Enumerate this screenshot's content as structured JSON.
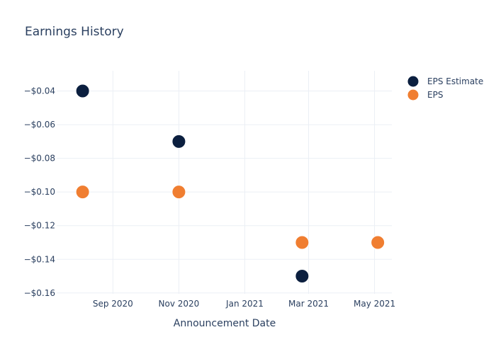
{
  "chart_data": {
    "type": "scatter",
    "title": "Earnings History",
    "xlabel": "Announcement Date",
    "ylabel": "",
    "x_ticks": [
      {
        "date": "2020-09-01",
        "label": "Sep 2020"
      },
      {
        "date": "2020-11-01",
        "label": "Nov 2020"
      },
      {
        "date": "2021-01-01",
        "label": "Jan 2021"
      },
      {
        "date": "2021-03-01",
        "label": "Mar 2021"
      },
      {
        "date": "2021-05-01",
        "label": "May 2021"
      }
    ],
    "y_ticks": [
      {
        "value": -0.04,
        "label": "−$0.04"
      },
      {
        "value": -0.06,
        "label": "−$0.06"
      },
      {
        "value": -0.08,
        "label": "−$0.08"
      },
      {
        "value": -0.1,
        "label": "−$0.10"
      },
      {
        "value": -0.12,
        "label": "−$0.12"
      },
      {
        "value": -0.14,
        "label": "−$0.14"
      },
      {
        "value": -0.16,
        "label": "−$0.16"
      }
    ],
    "xlim": [
      "2020-07-11",
      "2021-05-17"
    ],
    "ylim": [
      -0.1605,
      -0.028
    ],
    "grid": true,
    "legend_position": "top-right",
    "series": [
      {
        "name": "EPS Estimate",
        "color": "#0b1f3f",
        "points": [
          {
            "x": "2020-08-04",
            "y": -0.04
          },
          {
            "x": "2020-11-01",
            "y": -0.07
          },
          {
            "x": "2021-02-23",
            "y": -0.15
          },
          {
            "x": "2021-05-04",
            "y": -0.13
          }
        ]
      },
      {
        "name": "EPS",
        "color": "#f07e31",
        "points": [
          {
            "x": "2020-08-04",
            "y": -0.1
          },
          {
            "x": "2020-11-01",
            "y": -0.1
          },
          {
            "x": "2021-02-23",
            "y": -0.13
          },
          {
            "x": "2021-05-04",
            "y": -0.13
          }
        ]
      }
    ]
  }
}
